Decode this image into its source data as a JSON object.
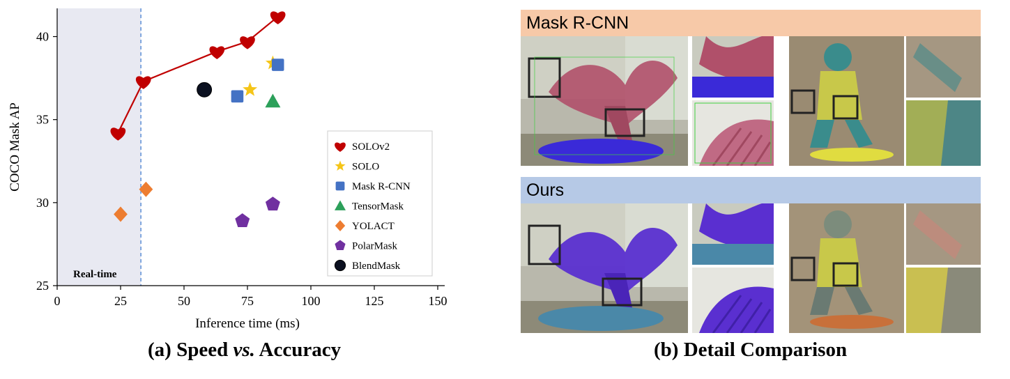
{
  "chart_data": {
    "type": "scatter",
    "title": "",
    "xlabel": "Inference time (ms)",
    "ylabel": "COCO Mask AP",
    "xlim": [
      0,
      150
    ],
    "ylim": [
      25,
      41.7
    ],
    "xticks": [
      0,
      25,
      50,
      75,
      100,
      125,
      150
    ],
    "yticks": [
      25,
      30,
      35,
      40
    ],
    "realtime_threshold_ms": 33,
    "realtime_label": "Real-time",
    "legend_position": "lower-right",
    "series": [
      {
        "name": "SOLOv2",
        "marker": "heart",
        "color": "#c00000",
        "connected": true,
        "x": [
          24,
          34,
          63,
          75,
          87
        ],
        "y": [
          34.2,
          37.3,
          39.1,
          39.7,
          41.2
        ]
      },
      {
        "name": "SOLO",
        "marker": "star",
        "color": "#f5c518",
        "connected": false,
        "x": [
          76,
          85
        ],
        "y": [
          36.8,
          38.4
        ]
      },
      {
        "name": "Mask R-CNN",
        "marker": "square",
        "color": "#4472c4",
        "connected": false,
        "x": [
          71,
          87
        ],
        "y": [
          36.4,
          38.3
        ]
      },
      {
        "name": "TensorMask",
        "marker": "triangle",
        "color": "#2ca05a",
        "connected": false,
        "x": [
          85
        ],
        "y": [
          36.1
        ]
      },
      {
        "name": "YOLACT",
        "marker": "diamond",
        "color": "#ed7d31",
        "connected": false,
        "x": [
          25,
          35
        ],
        "y": [
          29.3,
          30.8
        ]
      },
      {
        "name": "PolarMask",
        "marker": "pentagon",
        "color": "#7030a0",
        "connected": false,
        "x": [
          73,
          85
        ],
        "y": [
          28.9,
          29.9
        ]
      },
      {
        "name": "BlendMask",
        "marker": "circle",
        "color": "#0b1020",
        "connected": false,
        "x": [
          58
        ],
        "y": [
          36.8
        ]
      }
    ]
  },
  "captions": {
    "a_prefix": "(a) Speed ",
    "a_italic": "vs.",
    "a_suffix": " Accuracy",
    "b": "(b) Detail Comparison"
  },
  "comparison": {
    "top_label": "Mask R-CNN",
    "bottom_label": "Ours",
    "colors": {
      "top_bar": "#f7c9a8",
      "bottom_bar": "#b6c9e6",
      "baseline_bird": "#b0506a",
      "ours_bird": "#5a2fd0",
      "baseline_bath": "#3a2ad8",
      "ours_bath": "#4a88a8"
    }
  }
}
